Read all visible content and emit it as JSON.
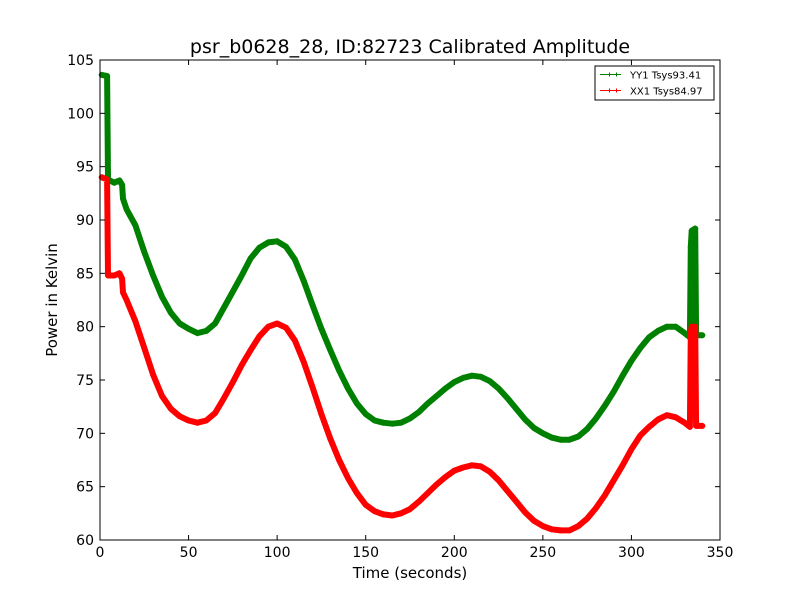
{
  "chart_data": {
    "type": "line",
    "title": "psr_b0628_28, ID:82723 Calibrated Amplitude",
    "xlabel": "Time (seconds)",
    "ylabel": "Power in Kelvin",
    "xlim": [
      0,
      350
    ],
    "ylim": [
      60,
      105
    ],
    "xticks": [
      0,
      50,
      100,
      150,
      200,
      250,
      300,
      350
    ],
    "yticks": [
      60,
      65,
      70,
      75,
      80,
      85,
      90,
      95,
      100,
      105
    ],
    "grid": false,
    "legend_position": "top-right",
    "series": [
      {
        "name": "YY1 Tsys93.41",
        "color": "#008000",
        "points": [
          [
            1,
            103.6
          ],
          [
            4,
            103.5
          ],
          [
            4.5,
            93.8
          ],
          [
            8,
            93.5
          ],
          [
            11,
            93.7
          ],
          [
            12.5,
            93.3
          ],
          [
            13,
            92.0
          ],
          [
            15,
            91.0
          ],
          [
            20,
            89.5
          ],
          [
            25,
            87.0
          ],
          [
            30,
            84.8
          ],
          [
            35,
            82.8
          ],
          [
            40,
            81.3
          ],
          [
            45,
            80.3
          ],
          [
            50,
            79.8
          ],
          [
            55,
            79.4
          ],
          [
            60,
            79.6
          ],
          [
            65,
            80.3
          ],
          [
            70,
            81.8
          ],
          [
            75,
            83.3
          ],
          [
            80,
            84.8
          ],
          [
            85,
            86.4
          ],
          [
            90,
            87.4
          ],
          [
            95,
            87.9
          ],
          [
            100,
            88.0
          ],
          [
            105,
            87.5
          ],
          [
            110,
            86.3
          ],
          [
            115,
            84.3
          ],
          [
            120,
            82.0
          ],
          [
            125,
            79.8
          ],
          [
            130,
            77.8
          ],
          [
            135,
            75.9
          ],
          [
            140,
            74.2
          ],
          [
            145,
            72.8
          ],
          [
            150,
            71.8
          ],
          [
            155,
            71.2
          ],
          [
            160,
            71.0
          ],
          [
            165,
            70.9
          ],
          [
            170,
            71.0
          ],
          [
            175,
            71.4
          ],
          [
            180,
            72.0
          ],
          [
            185,
            72.8
          ],
          [
            190,
            73.5
          ],
          [
            195,
            74.2
          ],
          [
            200,
            74.8
          ],
          [
            205,
            75.2
          ],
          [
            210,
            75.4
          ],
          [
            215,
            75.3
          ],
          [
            220,
            74.9
          ],
          [
            225,
            74.2
          ],
          [
            230,
            73.3
          ],
          [
            235,
            72.3
          ],
          [
            240,
            71.3
          ],
          [
            245,
            70.5
          ],
          [
            250,
            70.0
          ],
          [
            255,
            69.6
          ],
          [
            260,
            69.4
          ],
          [
            265,
            69.4
          ],
          [
            270,
            69.7
          ],
          [
            275,
            70.4
          ],
          [
            280,
            71.4
          ],
          [
            285,
            72.6
          ],
          [
            290,
            73.9
          ],
          [
            295,
            75.4
          ],
          [
            300,
            76.8
          ],
          [
            305,
            78.0
          ],
          [
            310,
            79.0
          ],
          [
            315,
            79.6
          ],
          [
            320,
            80.0
          ],
          [
            325,
            80.0
          ],
          [
            330,
            79.4
          ],
          [
            333,
            79.0
          ],
          [
            333.5,
            87.5
          ],
          [
            334,
            89.0
          ],
          [
            336,
            89.2
          ],
          [
            336.5,
            79.2
          ],
          [
            340,
            79.2
          ]
        ]
      },
      {
        "name": "XX1 Tsys84.97",
        "color": "#ff0000",
        "points": [
          [
            1,
            94.0
          ],
          [
            4,
            93.8
          ],
          [
            4.5,
            84.8
          ],
          [
            8,
            84.8
          ],
          [
            11,
            85.0
          ],
          [
            12.5,
            84.5
          ],
          [
            13,
            83.2
          ],
          [
            15,
            82.5
          ],
          [
            20,
            80.5
          ],
          [
            25,
            78.0
          ],
          [
            30,
            75.5
          ],
          [
            35,
            73.5
          ],
          [
            40,
            72.3
          ],
          [
            45,
            71.6
          ],
          [
            50,
            71.2
          ],
          [
            55,
            71.0
          ],
          [
            60,
            71.2
          ],
          [
            65,
            71.9
          ],
          [
            70,
            73.3
          ],
          [
            75,
            74.8
          ],
          [
            80,
            76.4
          ],
          [
            85,
            77.8
          ],
          [
            90,
            79.1
          ],
          [
            95,
            80.0
          ],
          [
            100,
            80.3
          ],
          [
            105,
            79.9
          ],
          [
            110,
            78.7
          ],
          [
            115,
            76.7
          ],
          [
            120,
            74.3
          ],
          [
            125,
            71.8
          ],
          [
            130,
            69.5
          ],
          [
            135,
            67.5
          ],
          [
            140,
            65.8
          ],
          [
            145,
            64.4
          ],
          [
            150,
            63.3
          ],
          [
            155,
            62.7
          ],
          [
            160,
            62.4
          ],
          [
            165,
            62.3
          ],
          [
            170,
            62.5
          ],
          [
            175,
            62.9
          ],
          [
            180,
            63.6
          ],
          [
            185,
            64.4
          ],
          [
            190,
            65.2
          ],
          [
            195,
            65.9
          ],
          [
            200,
            66.5
          ],
          [
            205,
            66.8
          ],
          [
            210,
            67.0
          ],
          [
            215,
            66.9
          ],
          [
            220,
            66.4
          ],
          [
            225,
            65.6
          ],
          [
            230,
            64.6
          ],
          [
            235,
            63.6
          ],
          [
            240,
            62.6
          ],
          [
            245,
            61.8
          ],
          [
            250,
            61.3
          ],
          [
            255,
            61.0
          ],
          [
            260,
            60.9
          ],
          [
            265,
            60.9
          ],
          [
            270,
            61.3
          ],
          [
            275,
            62.0
          ],
          [
            280,
            63.0
          ],
          [
            285,
            64.2
          ],
          [
            290,
            65.6
          ],
          [
            295,
            67.0
          ],
          [
            300,
            68.5
          ],
          [
            305,
            69.8
          ],
          [
            310,
            70.6
          ],
          [
            315,
            71.3
          ],
          [
            320,
            71.7
          ],
          [
            325,
            71.5
          ],
          [
            330,
            71.0
          ],
          [
            333,
            70.6
          ],
          [
            333.5,
            79.5
          ],
          [
            334,
            80.0
          ],
          [
            336,
            80.0
          ],
          [
            336.5,
            70.7
          ],
          [
            340,
            70.7
          ]
        ]
      }
    ]
  }
}
